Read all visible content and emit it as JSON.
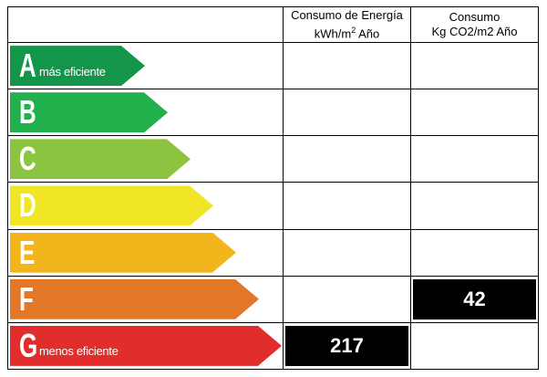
{
  "header": {
    "energy_title": "Consumo de Energía",
    "energy_unit_pre": "kWh/m",
    "energy_unit_sup": "2",
    "energy_unit_post": " Año",
    "co2_title": "Consumo",
    "co2_unit": "Kg CO2/m2 Año"
  },
  "ratings": [
    {
      "letter": "A",
      "label": "más eficiente",
      "color": "#13954a"
    },
    {
      "letter": "B",
      "label": "",
      "color": "#21b04b"
    },
    {
      "letter": "C",
      "label": "",
      "color": "#8cc43f"
    },
    {
      "letter": "D",
      "label": "",
      "color": "#f0e626"
    },
    {
      "letter": "E",
      "label": "",
      "color": "#f2b51c"
    },
    {
      "letter": "F",
      "label": "",
      "color": "#e27728"
    },
    {
      "letter": "G",
      "label": "menos eficiente",
      "color": "#e22d2d"
    }
  ],
  "energy_value": "217",
  "energy_rating": "G",
  "co2_value": "42",
  "co2_rating": "F"
}
